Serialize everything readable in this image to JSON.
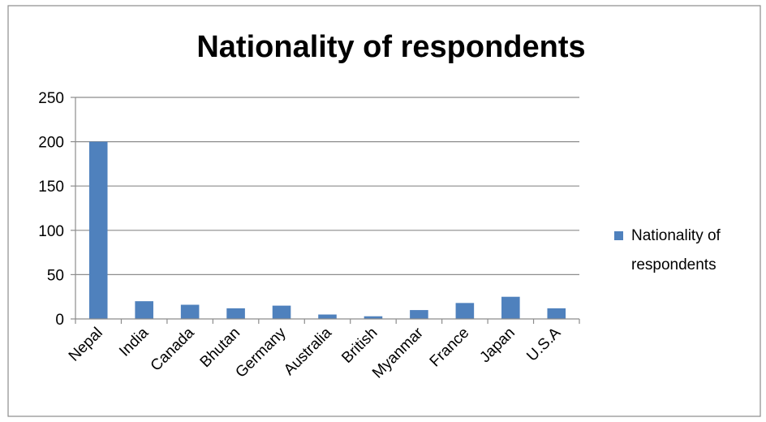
{
  "chart_data": {
    "type": "bar",
    "title": "Nationality of respondents",
    "categories": [
      "Nepal",
      "India",
      "Canada",
      "Bhutan",
      "Germany",
      "Australia",
      "British",
      "Myanmar",
      "France",
      "Japan",
      "U.S.A"
    ],
    "series": [
      {
        "name": "Nationality of respondents",
        "values": [
          200,
          20,
          16,
          12,
          15,
          5,
          3,
          10,
          18,
          25,
          12
        ],
        "color": "#4F81BD"
      }
    ],
    "ylim": [
      0,
      250
    ],
    "yticks": [
      "0",
      "50",
      "100",
      "150",
      "200",
      "250"
    ],
    "grid": true,
    "legend": "right",
    "legend_label_lines": [
      "Nationality of",
      "respondents"
    ]
  }
}
